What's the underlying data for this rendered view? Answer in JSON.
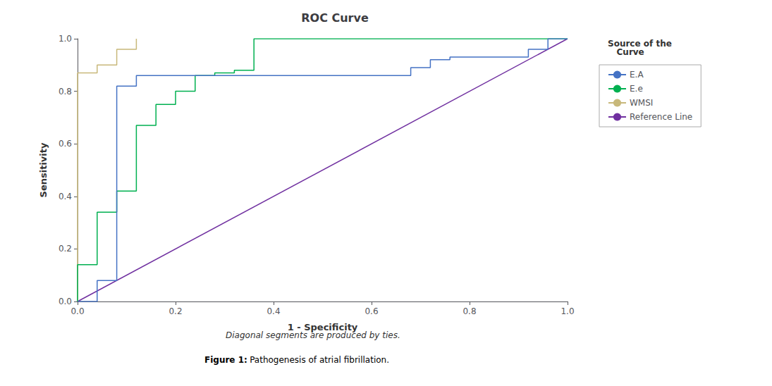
{
  "chart_data": {
    "type": "line",
    "title": "ROC Curve",
    "subtitle": "Diagonal segments are produced by ties.",
    "caption": [
      "Figure 1:",
      "Pathogenesis of atrial fibrillation."
    ],
    "xlabel": "1 - Specificity",
    "ylabel": "Sensitivity",
    "xlim": [
      0.0,
      1.0
    ],
    "ylim": [
      0.0,
      1.0
    ],
    "xticks": [
      {
        "value": 0.0,
        "label": "0.0"
      },
      0.2,
      0.4,
      0.6,
      0.8,
      {
        "value": 1.0,
        "label": "1.0"
      }
    ],
    "yticks": [
      {
        "value": 0.0,
        "label": "0.0"
      },
      0.2,
      0.4,
      0.6,
      0.8,
      {
        "value": 1.0,
        "label": "1.0"
      }
    ],
    "grid": false,
    "legend": "right",
    "legend_title": "Source of the\n   Curve",
    "series": [
      {
        "name": "E.A",
        "color": "#4472c4",
        "x": [
          0.0,
          0.04,
          0.04,
          0.08,
          0.08,
          0.12,
          0.12,
          0.68,
          0.68,
          0.72,
          0.72,
          0.76,
          0.76,
          0.92,
          0.92,
          0.96,
          0.96,
          1.0
        ],
        "values": [
          0.0,
          0.0,
          0.08,
          0.08,
          0.82,
          0.82,
          0.86,
          0.86,
          0.89,
          0.89,
          0.92,
          0.92,
          0.93,
          0.93,
          0.96,
          0.96,
          1.0,
          1.0
        ]
      },
      {
        "name": "E.e",
        "color": "#00b050",
        "x": [
          0.0,
          0.0,
          0.04,
          0.04,
          0.08,
          0.08,
          0.12,
          0.12,
          0.16,
          0.16,
          0.2,
          0.2,
          0.24,
          0.24,
          0.28,
          0.28,
          0.32,
          0.32,
          0.36,
          0.36,
          1.0
        ],
        "values": [
          0.0,
          0.14,
          0.14,
          0.34,
          0.34,
          0.42,
          0.42,
          0.67,
          0.67,
          0.75,
          0.75,
          0.8,
          0.8,
          0.86,
          0.86,
          0.87,
          0.87,
          0.88,
          0.88,
          1.0,
          1.0
        ]
      },
      {
        "name": "WMSI",
        "color": "#c8b87a",
        "x": [
          0.0,
          0.0,
          0.04,
          0.04,
          0.08,
          0.08,
          0.12,
          0.12
        ],
        "values": [
          0.0,
          0.87,
          0.87,
          0.9,
          0.9,
          0.96,
          0.96,
          1.0
        ]
      },
      {
        "name": "Reference Line",
        "color": "#7030a0",
        "x": [
          0.0,
          1.0
        ],
        "values": [
          0.0,
          1.0
        ]
      }
    ]
  }
}
